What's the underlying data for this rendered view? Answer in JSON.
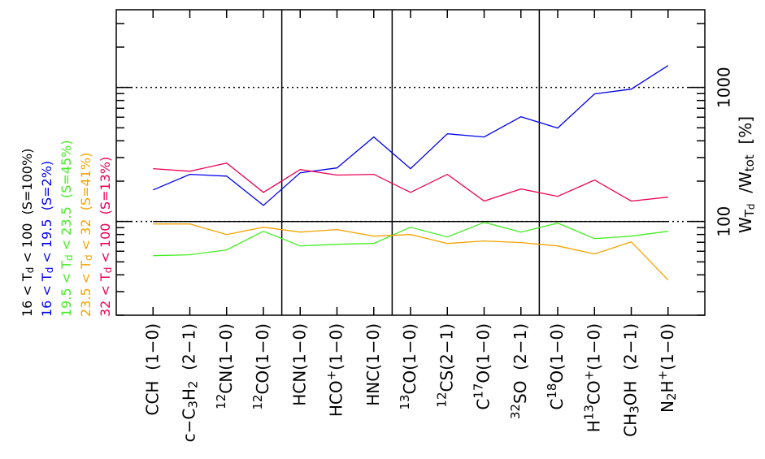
{
  "chart_data": {
    "type": "line",
    "categories": [
      [
        {
          "text": "CCH  (1−0)"
        }
      ],
      [
        {
          "text": "c−C"
        },
        {
          "text": "3",
          "script": "sub"
        },
        {
          "text": "H"
        },
        {
          "text": "2",
          "script": "sub"
        },
        {
          "text": "  (2−1)"
        }
      ],
      [
        {
          "text": "12",
          "script": "sup"
        },
        {
          "text": "CN(1−0)"
        }
      ],
      [
        {
          "text": "12",
          "script": "sup"
        },
        {
          "text": "CO(1−0)"
        }
      ],
      [
        {
          "text": "HCN(1−0)"
        }
      ],
      [
        {
          "text": "HCO"
        },
        {
          "text": "+",
          "script": "sup"
        },
        {
          "text": "(1−0)"
        }
      ],
      [
        {
          "text": "HNC(1−0)"
        }
      ],
      [
        {
          "text": "13",
          "script": "sup"
        },
        {
          "text": "CO(1−0)"
        }
      ],
      [
        {
          "text": "12",
          "script": "sup"
        },
        {
          "text": "CS(2−1)"
        }
      ],
      [
        {
          "text": "C"
        },
        {
          "text": "17",
          "script": "sup"
        },
        {
          "text": "O(1−0)"
        }
      ],
      [
        {
          "text": "32",
          "script": "sup"
        },
        {
          "text": "SO  (2−1)"
        }
      ],
      [
        {
          "text": "C"
        },
        {
          "text": "18",
          "script": "sup"
        },
        {
          "text": "O(1−0)"
        }
      ],
      [
        {
          "text": "H"
        },
        {
          "text": "13",
          "script": "sup"
        },
        {
          "text": "CO"
        },
        {
          "text": "+",
          "script": "sup"
        },
        {
          "text": "(1−0)"
        }
      ],
      [
        {
          "text": "CH"
        },
        {
          "text": "3",
          "script": "sub"
        },
        {
          "text": "OH  (2−1)"
        }
      ],
      [
        {
          "text": "N"
        },
        {
          "text": "2",
          "script": "sub"
        },
        {
          "text": "H"
        },
        {
          "text": "+",
          "script": "sup"
        },
        {
          "text": "(1−0)"
        }
      ]
    ],
    "series": [
      {
        "name": [
          {
            "text": "16 < T"
          },
          {
            "text": "d",
            "script": "sub"
          },
          {
            "text": " < 100  (S=100%)"
          }
        ],
        "color": "#000000",
        "values": [
          100,
          100,
          100,
          100,
          100,
          100,
          100,
          100,
          100,
          100,
          100,
          100,
          100,
          100,
          100
        ]
      },
      {
        "name": [
          {
            "text": "16 < T"
          },
          {
            "text": "d",
            "script": "sub"
          },
          {
            "text": " < 19.5  (S=2%)"
          }
        ],
        "color": "#0000ee",
        "values": [
          172,
          225,
          218,
          132,
          231,
          251,
          427,
          248,
          451,
          427,
          605,
          498,
          895,
          972,
          1457
        ]
      },
      {
        "name": [
          {
            "text": "19.5 < T"
          },
          {
            "text": "d",
            "script": "sub"
          },
          {
            "text": " < 23.5  (S=45%)"
          }
        ],
        "color": "#44ee22",
        "values": [
          55.6,
          56.5,
          61.4,
          84.6,
          65.8,
          67.6,
          68.6,
          90.7,
          76.7,
          98.6,
          83.4,
          97.3,
          74.6,
          77.8,
          84.6
        ]
      },
      {
        "name": [
          {
            "text": "23.5 < T"
          },
          {
            "text": "d",
            "script": "sub"
          },
          {
            "text": " < 32  (S=41%)"
          }
        ],
        "color": "#f5a300",
        "values": [
          95.9,
          95.9,
          80,
          90.7,
          83.4,
          87,
          77.8,
          80,
          68.6,
          71.6,
          69.6,
          65.8,
          57.3,
          70.5,
          36.6
        ]
      },
      {
        "name": [
          {
            "text": "32 < T"
          },
          {
            "text": "d",
            "script": "sub"
          },
          {
            "text": " < 100  (S=13%)"
          }
        ],
        "color": "#ee0055",
        "values": [
          248,
          237,
          273,
          165,
          244,
          222,
          225,
          165,
          225,
          142,
          175,
          154,
          204,
          142,
          152
        ]
      }
    ],
    "y_label": [
      {
        "text": "W"
      },
      {
        "text": "T",
        "script": "sub"
      },
      {
        "text": "d",
        "script": "subsub"
      },
      {
        "text": "  /W"
      },
      {
        "text": "tot",
        "script": "sub"
      },
      {
        "text": "  [%]"
      }
    ],
    "y_log": true,
    "ylim": [
      20,
      3800
    ],
    "yticks": [
      100,
      1000
    ],
    "minor_yticks": [
      20,
      30,
      40,
      50,
      60,
      70,
      80,
      90,
      200,
      300,
      400,
      500,
      600,
      700,
      800,
      900,
      2000,
      3000
    ],
    "reference_lines": [
      100,
      1000
    ]
  }
}
